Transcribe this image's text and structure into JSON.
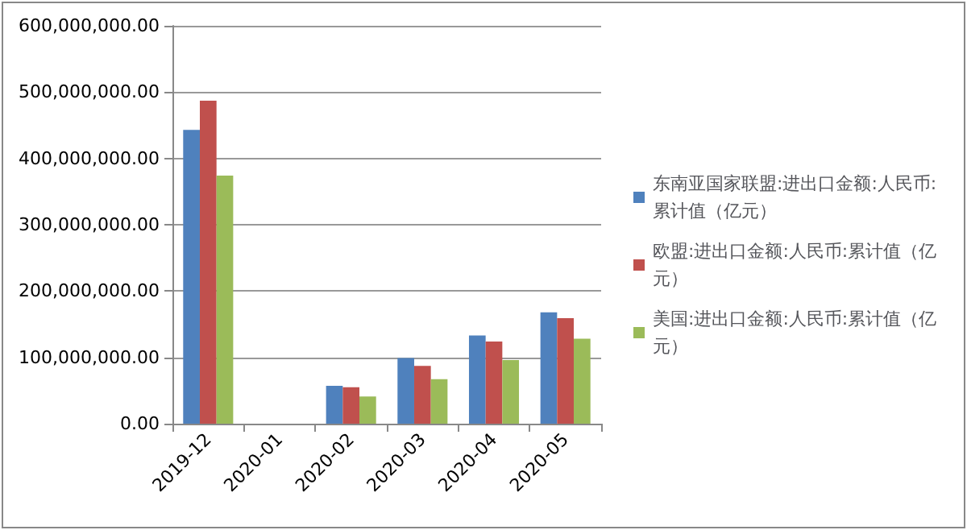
{
  "chart_data": {
    "type": "bar",
    "categories": [
      "2019-12",
      "2020-01",
      "2020-02",
      "2020-03",
      "2020-04",
      "2020-05"
    ],
    "series": [
      {
        "name": "东南亚国家联盟:进出口金额:人民币:累计值（亿元）",
        "color": "#4f81bd",
        "values": [
          443000000,
          null,
          57000000,
          99000000,
          133000000,
          168000000
        ]
      },
      {
        "name": "欧盟:进出口金额:人民币:累计值（亿元）",
        "color": "#c0504d",
        "values": [
          487000000,
          null,
          55000000,
          87000000,
          124000000,
          159000000
        ]
      },
      {
        "name": "美国:进出口金额:人民币:累计值（亿元）",
        "color": "#9bbb59",
        "values": [
          374000000,
          null,
          41000000,
          67000000,
          96000000,
          128000000
        ]
      }
    ],
    "ylim": [
      0,
      600000000
    ],
    "yticks": [
      {
        "value": 0,
        "label": "0.00"
      },
      {
        "value": 100000000,
        "label": "100,000,000.00"
      },
      {
        "value": 200000000,
        "label": "200,000,000.00"
      },
      {
        "value": 300000000,
        "label": "300,000,000.00"
      },
      {
        "value": 400000000,
        "label": "400,000,000.00"
      },
      {
        "value": 500000000,
        "label": "500,000,000.00"
      },
      {
        "value": 600000000,
        "label": "600,000,000.00"
      }
    ],
    "grid": "y",
    "legend": "right"
  }
}
